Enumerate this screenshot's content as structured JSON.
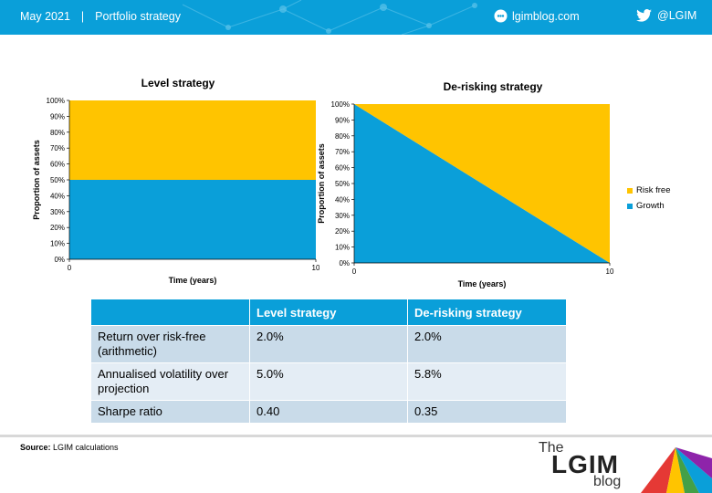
{
  "header": {
    "date": "May 2021",
    "separator": "|",
    "section": "Portfolio strategy",
    "site": "lgimblog.com",
    "twitter": "@LGIM"
  },
  "chart_data": [
    {
      "type": "area",
      "title": "Level strategy",
      "xlabel": "Time (years)",
      "ylabel": "Proportion of assets",
      "x": [
        0,
        10
      ],
      "xticks": [
        "0",
        "10"
      ],
      "yticks": [
        "0%",
        "10%",
        "20%",
        "30%",
        "40%",
        "50%",
        "60%",
        "70%",
        "80%",
        "90%",
        "100%"
      ],
      "ylim": [
        0,
        100
      ],
      "stacked": true,
      "series": [
        {
          "name": "Growth",
          "values": [
            50,
            50
          ],
          "color": "#0a9fd9"
        },
        {
          "name": "Risk free",
          "values": [
            50,
            50
          ],
          "color": "#ffc400"
        }
      ]
    },
    {
      "type": "area",
      "title": "De-risking strategy",
      "xlabel": "Time (years)",
      "ylabel": "Proportion of assets",
      "x": [
        0,
        10
      ],
      "xticks": [
        "0",
        "10"
      ],
      "yticks": [
        "0%",
        "10%",
        "20%",
        "30%",
        "40%",
        "50%",
        "60%",
        "70%",
        "80%",
        "90%",
        "100%"
      ],
      "ylim": [
        0,
        100
      ],
      "stacked": true,
      "series": [
        {
          "name": "Growth",
          "values": [
            100,
            0
          ],
          "color": "#0a9fd9"
        },
        {
          "name": "Risk free",
          "values": [
            0,
            100
          ],
          "color": "#ffc400"
        }
      ]
    }
  ],
  "legend": [
    {
      "label": "Risk free",
      "color": "#ffc400"
    },
    {
      "label": "Growth",
      "color": "#0a9fd9"
    }
  ],
  "table": {
    "headers": [
      "",
      "Level strategy",
      "De-risking strategy"
    ],
    "rows": [
      [
        "Return over risk-free (arithmetic)",
        "2.0%",
        "2.0%"
      ],
      [
        "Annualised volatility over projection",
        "5.0%",
        "5.8%"
      ],
      [
        "Sharpe ratio",
        "0.40",
        "0.35"
      ]
    ]
  },
  "footer": {
    "source_label": "Source:",
    "source_text": "LGIM calculations"
  },
  "logo": {
    "the": "The",
    "name": "LGIM",
    "blog": "blog"
  }
}
